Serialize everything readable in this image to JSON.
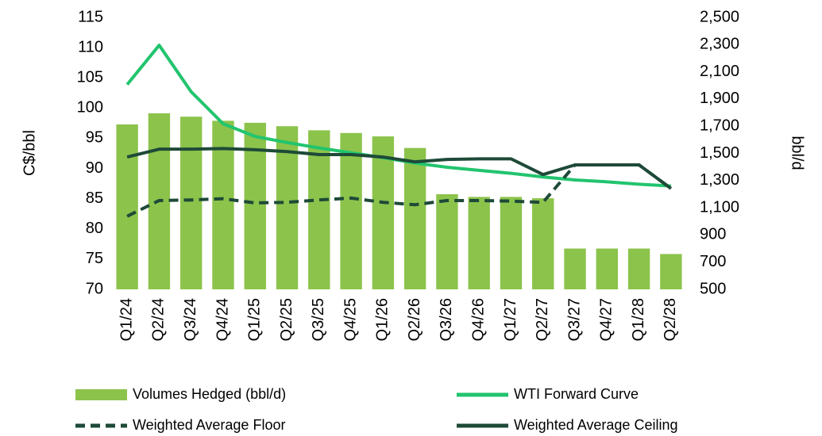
{
  "chart_data": {
    "type": "combo",
    "categories": [
      "Q1/24",
      "Q2/24",
      "Q3/24",
      "Q4/24",
      "Q1/25",
      "Q2/25",
      "Q3/25",
      "Q4/25",
      "Q1/26",
      "Q2/26",
      "Q3/26",
      "Q4/26",
      "Q1/27",
      "Q2/27",
      "Q3/27",
      "Q4/27",
      "Q1/28",
      "Q2/28"
    ],
    "y_label": "C$/bbl",
    "y2_label": "bbl/d",
    "ylim": [
      70,
      115
    ],
    "yticks": [
      70,
      75,
      80,
      85,
      90,
      95,
      100,
      105,
      110,
      115
    ],
    "y2lim": [
      500,
      2500
    ],
    "y2ticks": [
      500,
      700,
      900,
      {
        "value": 1100,
        "label": "1,100"
      },
      {
        "value": 1300,
        "label": "1,300"
      },
      {
        "value": 1500,
        "label": "1,500"
      },
      {
        "value": 1700,
        "label": "1,700"
      },
      {
        "value": 1900,
        "label": "1,900"
      },
      {
        "value": 2100,
        "label": "2,100"
      },
      {
        "value": 2300,
        "label": "2,300"
      },
      {
        "value": 2500,
        "label": "2,500"
      }
    ],
    "series": [
      {
        "name": "Volumes Hedged (bbl/d)",
        "type": "bar",
        "axis": "y2",
        "color": "#8cc34b",
        "values": [
          1713,
          1795,
          1770,
          1740,
          1725,
          1700,
          1670,
          1650,
          1625,
          1540,
          1200,
          1180,
          1180,
          1170,
          800,
          800,
          800,
          760
        ]
      },
      {
        "name": "WTI Forward Curve",
        "type": "line",
        "color": "#22c46e",
        "dashed": false,
        "values": [
          103.9,
          110.4,
          102.7,
          97.4,
          95.3,
          94.3,
          93.4,
          92.6,
          91.8,
          90.9,
          90.2,
          89.7,
          89.2,
          88.6,
          88.1,
          87.8,
          87.4,
          87.1
        ]
      },
      {
        "name": "Weighted Average Floor",
        "type": "line",
        "color": "#1e4a38",
        "dashed": true,
        "values": [
          82.1,
          84.7,
          84.8,
          85.0,
          84.3,
          84.4,
          84.8,
          85.1,
          84.4,
          84.0,
          84.7,
          84.7,
          84.6,
          84.4,
          90.6,
          90.6,
          90.6,
          86.7
        ]
      },
      {
        "name": "Weighted Average Ceiling",
        "type": "line",
        "color": "#1e4a38",
        "dashed": false,
        "values": [
          91.9,
          93.2,
          93.2,
          93.3,
          93.1,
          92.8,
          92.3,
          92.3,
          91.9,
          91.1,
          91.5,
          91.6,
          91.6,
          89.0,
          90.6,
          90.6,
          90.6,
          86.7
        ]
      }
    ]
  }
}
